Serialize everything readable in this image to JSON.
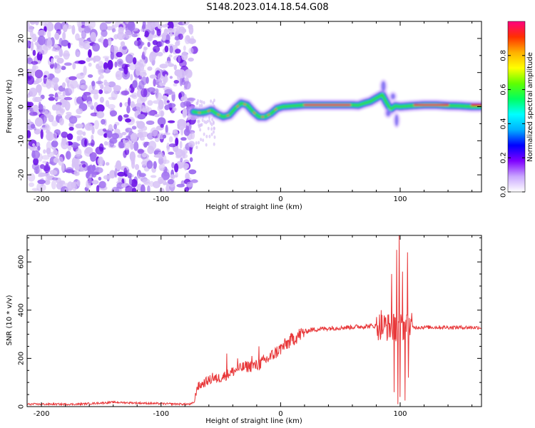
{
  "figure": {
    "title": "S148.2023.014.18.54.G08"
  },
  "colors": {
    "snr_line": "#e8383a",
    "ridge_outer": "#3a36e6",
    "ridge_mid": "#00d9c8",
    "ridge_inner": "#32d832",
    "ridge_core": "#e4262a",
    "noise_light": "#d7c2f6",
    "noise_dark": "#6a10e6"
  },
  "chart_data": [
    {
      "type": "heatmap",
      "title": "",
      "xlabel": "Height of straight line (km)",
      "ylabel": "Frequency (Hz)",
      "xlim": [
        -212,
        168
      ],
      "ylim": [
        -25,
        25
      ],
      "x_ticks": [
        -200,
        -100,
        0,
        100
      ],
      "x_tick_labels": [
        "-200",
        "-100",
        "0",
        "100"
      ],
      "y_ticks": [
        -20,
        -10,
        0,
        10,
        20
      ],
      "y_tick_labels": [
        "-20",
        "-10",
        "0",
        "10",
        "20"
      ],
      "noise_region_x": [
        -212,
        -72
      ],
      "ridge": {
        "x": [
          -73,
          -68,
          -63,
          -58,
          -53,
          -48,
          -43,
          -38,
          -33,
          -28,
          -23,
          -18,
          -13,
          -8,
          -3,
          2,
          10,
          20,
          30,
          40,
          50,
          60,
          65,
          70,
          75,
          80,
          85,
          88,
          92,
          96,
          100,
          110,
          120,
          130,
          140,
          150,
          160,
          168
        ],
        "y": [
          -1.5,
          -1.8,
          -1.6,
          -1.0,
          -2.2,
          -3.0,
          -2.5,
          -0.5,
          1.0,
          0.5,
          -1.5,
          -3.0,
          -3.0,
          -2.0,
          -0.5,
          0.0,
          0.2,
          0.5,
          0.5,
          0.5,
          0.5,
          0.5,
          0.4,
          1.0,
          1.5,
          2.5,
          3.5,
          1.5,
          -0.8,
          0.2,
          0.0,
          0.3,
          0.5,
          0.5,
          0.3,
          0.2,
          0.0,
          0.0
        ]
      },
      "core_segments": [
        [
          20,
          58
        ],
        [
          112,
          140
        ],
        [
          160,
          168
        ]
      ],
      "colorbar": {
        "label": "Normalized spectral amplitude",
        "range": [
          0,
          1
        ],
        "ticks": [
          0.0,
          0.2,
          0.4,
          0.6,
          0.8
        ],
        "tick_labels": [
          "0.0",
          "0.2",
          "0.4",
          "0.6",
          "0.8"
        ],
        "gradient": [
          "#ffffff",
          "#c9a6ff",
          "#7f00ff",
          "#0000ff",
          "#00b0ff",
          "#00ffff",
          "#00ff60",
          "#60ff00",
          "#ffff00",
          "#ffb000",
          "#ff3000",
          "#ff0080"
        ]
      }
    },
    {
      "type": "line",
      "title": "",
      "xlabel": "Height of straight line (km)",
      "ylabel": "SNR (10 * v/v)",
      "xlim": [
        -212,
        168
      ],
      "ylim": [
        0,
        710
      ],
      "x_ticks": [
        -200,
        -100,
        0,
        100
      ],
      "x_tick_labels": [
        "-200",
        "-100",
        "0",
        "100"
      ],
      "y_ticks": [
        0,
        200,
        400,
        600
      ],
      "y_tick_labels": [
        "0",
        "200",
        "400",
        "600"
      ],
      "series": [
        {
          "name": "SNR",
          "trend": {
            "x": [
              -212,
              -170,
              -150,
              -140,
              -100,
              -75,
              -72,
              -70,
              -60,
              -50,
              -40,
              -30,
              -20,
              -10,
              0,
              10,
              20,
              25,
              40,
              60,
              80,
              90,
              168
            ],
            "y": [
              10,
              10,
              15,
              18,
              12,
              10,
              20,
              80,
              110,
              120,
              145,
              165,
              170,
              200,
              240,
              280,
              310,
              318,
              325,
              330,
              335,
              330,
              328
            ]
          },
          "spikes": [
            {
              "x": -57,
              "y": 140
            },
            {
              "x": -45,
              "y": 220
            },
            {
              "x": -36,
              "y": 200
            },
            {
              "x": -24,
              "y": 210
            },
            {
              "x": -18,
              "y": 250
            },
            {
              "x": 84,
              "y": 400
            },
            {
              "x": 88,
              "y": 370
            },
            {
              "x": 93,
              "y": 550
            },
            {
              "x": 95,
              "y": 60
            },
            {
              "x": 97,
              "y": 650
            },
            {
              "x": 98,
              "y": 10
            },
            {
              "x": 99,
              "y": 710
            },
            {
              "x": 100,
              "y": 40
            },
            {
              "x": 102,
              "y": 560
            },
            {
              "x": 104,
              "y": 25
            },
            {
              "x": 106,
              "y": 640
            },
            {
              "x": 107,
              "y": 120
            }
          ]
        }
      ]
    }
  ]
}
